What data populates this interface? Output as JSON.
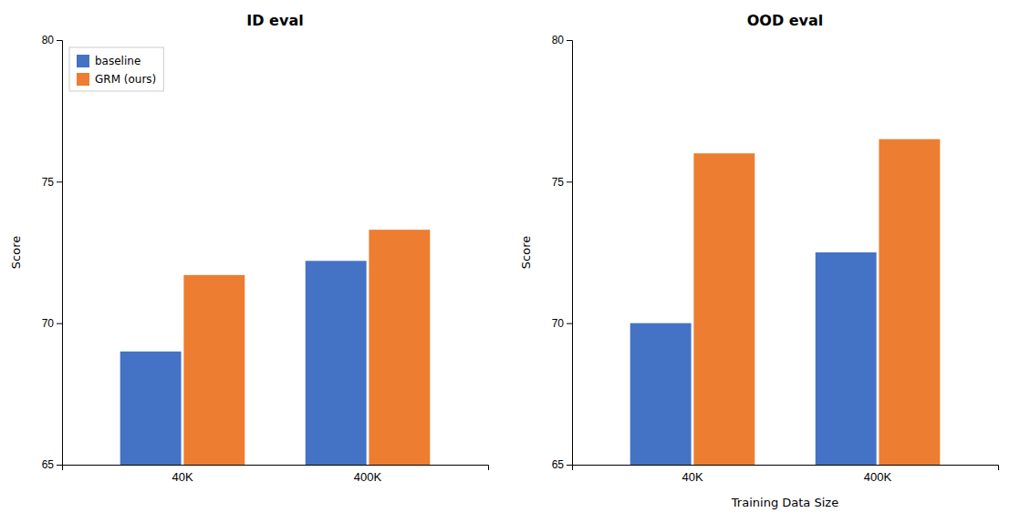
{
  "chart_data": [
    {
      "type": "bar",
      "title": "ID eval",
      "categories": [
        "40K",
        "400K"
      ],
      "series": [
        {
          "name": "baseline",
          "color": "#4472c4",
          "values": [
            69.0,
            72.2
          ]
        },
        {
          "name": "GRM (ours)",
          "color": "#ed7d31",
          "values": [
            71.7,
            73.3
          ]
        }
      ],
      "ylabel": "Score",
      "ylim": [
        65,
        80
      ],
      "yticks": [
        65,
        70,
        75,
        80
      ],
      "legend": "upper left"
    },
    {
      "type": "bar",
      "title": "OOD eval",
      "categories": [
        "40K",
        "400K"
      ],
      "series": [
        {
          "color": "#4472c4",
          "values": [
            70.0,
            72.5
          ]
        },
        {
          "color": "#ed7d31",
          "values": [
            76.0,
            76.5
          ]
        }
      ],
      "xlabel": "Training Data Size",
      "ylabel": "Score",
      "ylim": [
        65,
        80
      ],
      "yticks": [
        65,
        70,
        75,
        80
      ]
    }
  ]
}
